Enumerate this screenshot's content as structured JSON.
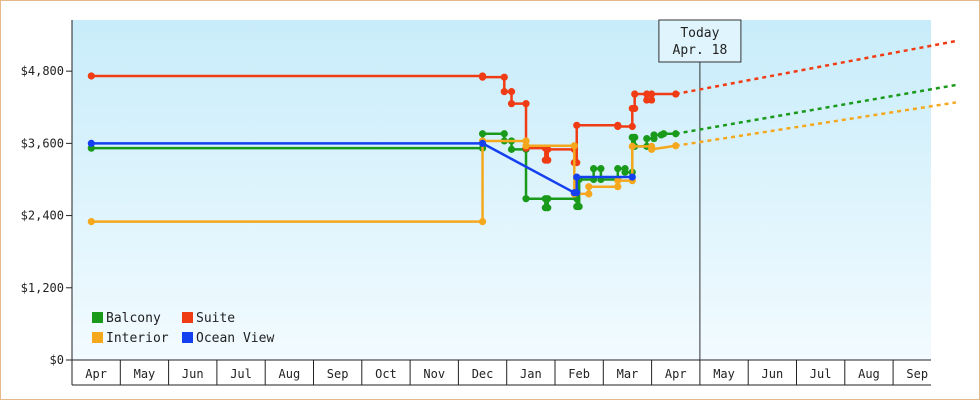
{
  "chart_data": {
    "type": "line",
    "x_axis": {
      "ticks": [
        "Apr",
        "May",
        "Jun",
        "Jul",
        "Aug",
        "Sep",
        "Oct",
        "Nov",
        "Dec",
        "Jan",
        "Feb",
        "Mar",
        "Apr",
        "May",
        "Jun",
        "Jul",
        "Aug",
        "Sep"
      ]
    },
    "y_axis": {
      "ticks": [
        "$0",
        "$1,200",
        "$2,400",
        "$3,600",
        "$4,800"
      ],
      "values": [
        0,
        1200,
        2400,
        3600,
        4800
      ],
      "range": [
        0,
        5650
      ]
    },
    "grid": false,
    "legend_position": "bottom-left",
    "today_marker": {
      "line1": "Today",
      "line2": "Apr. 18",
      "x": 12.5
    },
    "series": [
      {
        "name": "Balcony",
        "color": "#1a9a1a",
        "points": [
          [
            -0.1,
            3520
          ],
          [
            8.0,
            3520
          ],
          [
            8.0,
            3760
          ],
          [
            8.45,
            3760
          ],
          [
            8.45,
            3640
          ],
          [
            8.6,
            3640
          ],
          [
            8.6,
            3500
          ],
          [
            8.9,
            3500
          ],
          [
            8.9,
            2680
          ],
          [
            9.3,
            2680
          ],
          [
            9.3,
            2530
          ],
          [
            9.35,
            2530
          ],
          [
            9.35,
            2680
          ],
          [
            9.95,
            2680
          ],
          [
            9.95,
            2550
          ],
          [
            10.0,
            2550
          ],
          [
            10.0,
            3000
          ],
          [
            10.3,
            3000
          ],
          [
            10.3,
            3180
          ],
          [
            10.45,
            3180
          ],
          [
            10.45,
            3000
          ],
          [
            10.8,
            3000
          ],
          [
            10.8,
            3180
          ],
          [
            10.95,
            3180
          ],
          [
            10.95,
            3120
          ],
          [
            11.1,
            3120
          ],
          [
            11.1,
            3700
          ],
          [
            11.15,
            3700
          ],
          [
            11.15,
            3550
          ],
          [
            11.4,
            3550
          ],
          [
            11.4,
            3680
          ],
          [
            11.55,
            3680
          ],
          [
            11.55,
            3740
          ],
          [
            11.7,
            3740
          ],
          [
            11.75,
            3760
          ],
          [
            12.0,
            3760
          ]
        ],
        "projection": [
          [
            12.0,
            3760
          ],
          [
            17.8,
            4570
          ]
        ]
      },
      {
        "name": "Suite",
        "color": "#f03c14",
        "points": [
          [
            -0.1,
            4720
          ],
          [
            8.0,
            4720
          ],
          [
            8.0,
            4700
          ],
          [
            8.45,
            4700
          ],
          [
            8.45,
            4460
          ],
          [
            8.6,
            4460
          ],
          [
            8.6,
            4260
          ],
          [
            8.9,
            4260
          ],
          [
            8.9,
            3520
          ],
          [
            9.3,
            3520
          ],
          [
            9.3,
            3320
          ],
          [
            9.35,
            3320
          ],
          [
            9.35,
            3500
          ],
          [
            9.9,
            3500
          ],
          [
            9.9,
            3280
          ],
          [
            9.95,
            3280
          ],
          [
            9.95,
            3900
          ],
          [
            10.8,
            3900
          ],
          [
            10.8,
            3880
          ],
          [
            11.1,
            3880
          ],
          [
            11.1,
            4180
          ],
          [
            11.15,
            4180
          ],
          [
            11.15,
            4420
          ],
          [
            11.4,
            4420
          ],
          [
            11.4,
            4320
          ],
          [
            11.5,
            4320
          ],
          [
            11.5,
            4420
          ],
          [
            12.0,
            4420
          ]
        ],
        "projection": [
          [
            12.0,
            4420
          ],
          [
            17.8,
            5300
          ]
        ]
      },
      {
        "name": "Interior",
        "color": "#f5a81e",
        "points": [
          [
            -0.1,
            2300
          ],
          [
            8.0,
            2300
          ],
          [
            8.0,
            3640
          ],
          [
            8.9,
            3640
          ],
          [
            8.9,
            3560
          ],
          [
            9.9,
            3560
          ],
          [
            9.9,
            2760
          ],
          [
            10.2,
            2760
          ],
          [
            10.2,
            2880
          ],
          [
            10.8,
            2880
          ],
          [
            10.8,
            2980
          ],
          [
            11.1,
            2980
          ],
          [
            11.1,
            3550
          ],
          [
            11.5,
            3550
          ],
          [
            11.5,
            3500
          ],
          [
            12.0,
            3560
          ]
        ],
        "projection": [
          [
            12.0,
            3560
          ],
          [
            17.8,
            4280
          ]
        ]
      },
      {
        "name": "Ocean View",
        "color": "#1440f0",
        "points": [
          [
            -0.1,
            3600
          ],
          [
            8.0,
            3600
          ],
          [
            9.9,
            2780
          ],
          [
            9.95,
            2780
          ],
          [
            9.95,
            3040
          ],
          [
            11.1,
            3040
          ]
        ],
        "projection": []
      }
    ]
  },
  "legend": [
    {
      "label": "Balcony",
      "color": "#1a9a1a"
    },
    {
      "label": "Suite",
      "color": "#f03c14"
    },
    {
      "label": "Interior",
      "color": "#f5a81e"
    },
    {
      "label": "Ocean View",
      "color": "#1440f0"
    }
  ]
}
